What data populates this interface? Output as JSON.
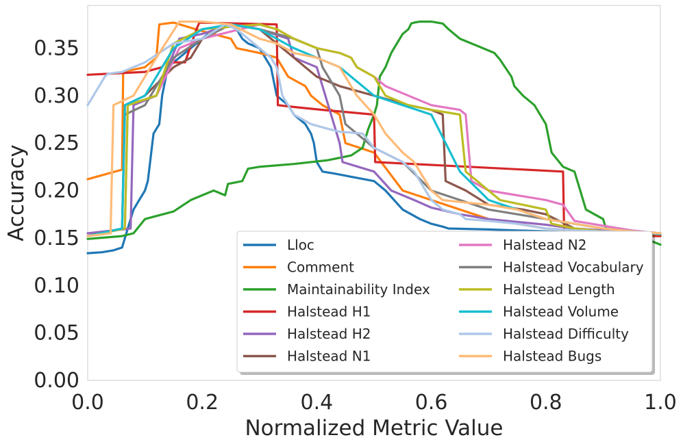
{
  "chart_data": {
    "type": "line",
    "title": "",
    "xlabel": "Normalized Metric Value",
    "ylabel": "Accuracy",
    "xlim": [
      0.0,
      1.0
    ],
    "ylim": [
      0.0,
      0.395
    ],
    "xticks": [
      0.0,
      0.2,
      0.4,
      0.6,
      0.8,
      1.0
    ],
    "xtick_labels": [
      "0.0",
      "0.2",
      "0.4",
      "0.6",
      "0.8",
      "1.0"
    ],
    "yticks": [
      0.0,
      0.05,
      0.1,
      0.15,
      0.2,
      0.25,
      0.3,
      0.35
    ],
    "ytick_labels": [
      "0.00",
      "0.05",
      "0.10",
      "0.15",
      "0.20",
      "0.25",
      "0.30",
      "0.35"
    ],
    "grid": false,
    "legend_position": "lower-right",
    "series": [
      {
        "name": "Lloc",
        "color": "#1f77b4",
        "x": [
          0.0,
          0.025,
          0.045,
          0.06,
          0.07,
          0.08,
          0.09,
          0.1,
          0.105,
          0.115,
          0.125,
          0.13,
          0.14,
          0.16,
          0.18,
          0.2,
          0.22,
          0.25,
          0.26,
          0.27,
          0.28,
          0.3,
          0.32,
          0.33,
          0.35,
          0.36,
          0.38,
          0.39,
          0.395,
          0.4,
          0.41,
          0.43,
          0.5,
          0.52,
          0.55,
          0.58,
          0.6,
          0.62,
          0.63,
          0.7,
          0.75,
          0.8,
          0.85,
          0.9,
          0.95,
          1.0
        ],
        "y": [
          0.134,
          0.135,
          0.137,
          0.14,
          0.16,
          0.18,
          0.19,
          0.2,
          0.21,
          0.26,
          0.27,
          0.3,
          0.33,
          0.34,
          0.35,
          0.36,
          0.37,
          0.375,
          0.37,
          0.36,
          0.355,
          0.35,
          0.33,
          0.3,
          0.29,
          0.28,
          0.27,
          0.26,
          0.25,
          0.23,
          0.22,
          0.218,
          0.21,
          0.2,
          0.18,
          0.17,
          0.165,
          0.162,
          0.16,
          0.159,
          0.158,
          0.157,
          0.156,
          0.155,
          0.154,
          0.153
        ]
      },
      {
        "name": "Comment",
        "color": "#ff7f0e",
        "x": [
          0.0,
          0.06,
          0.062,
          0.1,
          0.12,
          0.125,
          0.15,
          0.2,
          0.25,
          0.26,
          0.3,
          0.33,
          0.35,
          0.38,
          0.39,
          0.41,
          0.44,
          0.45,
          0.5,
          0.55,
          0.6,
          0.65,
          0.7,
          0.75,
          0.8,
          0.85,
          0.9,
          0.95,
          1.0
        ],
        "y": [
          0.212,
          0.222,
          0.325,
          0.33,
          0.34,
          0.375,
          0.377,
          0.368,
          0.36,
          0.35,
          0.345,
          0.34,
          0.32,
          0.31,
          0.3,
          0.29,
          0.28,
          0.25,
          0.24,
          0.2,
          0.19,
          0.18,
          0.17,
          0.165,
          0.16,
          0.158,
          0.156,
          0.155,
          0.154
        ]
      },
      {
        "name": "Maintainability Index",
        "color": "#2ca02c",
        "x": [
          0.0,
          0.02,
          0.04,
          0.06,
          0.08,
          0.1,
          0.15,
          0.18,
          0.22,
          0.24,
          0.245,
          0.27,
          0.28,
          0.3,
          0.36,
          0.42,
          0.46,
          0.48,
          0.49,
          0.5,
          0.505,
          0.51,
          0.52,
          0.53,
          0.54,
          0.55,
          0.56,
          0.565,
          0.57,
          0.58,
          0.6,
          0.62,
          0.63,
          0.65,
          0.69,
          0.71,
          0.72,
          0.74,
          0.745,
          0.76,
          0.78,
          0.8,
          0.81,
          0.83,
          0.85,
          0.86,
          0.87,
          0.9,
          0.905,
          0.95,
          1.0
        ],
        "y": [
          0.149,
          0.15,
          0.151,
          0.152,
          0.155,
          0.17,
          0.178,
          0.19,
          0.2,
          0.195,
          0.207,
          0.21,
          0.223,
          0.225,
          0.228,
          0.232,
          0.237,
          0.245,
          0.265,
          0.28,
          0.29,
          0.32,
          0.33,
          0.345,
          0.355,
          0.365,
          0.37,
          0.376,
          0.377,
          0.378,
          0.378,
          0.376,
          0.37,
          0.36,
          0.35,
          0.345,
          0.338,
          0.32,
          0.31,
          0.3,
          0.29,
          0.27,
          0.24,
          0.225,
          0.22,
          0.2,
          0.18,
          0.17,
          0.16,
          0.155,
          0.143
        ]
      },
      {
        "name": "Halstead H1",
        "color": "#d62728",
        "x": [
          0.0,
          0.1,
          0.13,
          0.135,
          0.17,
          0.19,
          0.195,
          0.33,
          0.332,
          0.36,
          0.41,
          0.5,
          0.502,
          0.83,
          0.832,
          1.0
        ],
        "y": [
          0.322,
          0.325,
          0.33,
          0.335,
          0.335,
          0.37,
          0.377,
          0.375,
          0.29,
          0.288,
          0.285,
          0.28,
          0.23,
          0.22,
          0.153,
          0.152
        ]
      },
      {
        "name": "Halstead H2",
        "color": "#9467bd",
        "x": [
          0.0,
          0.075,
          0.08,
          0.12,
          0.16,
          0.2,
          0.25,
          0.3,
          0.35,
          0.36,
          0.4,
          0.44,
          0.445,
          0.5,
          0.53,
          0.57,
          0.6,
          0.65,
          0.7,
          0.75,
          0.8,
          0.85,
          0.9,
          0.95,
          1.0
        ],
        "y": [
          0.155,
          0.16,
          0.29,
          0.3,
          0.36,
          0.365,
          0.375,
          0.37,
          0.36,
          0.34,
          0.33,
          0.25,
          0.23,
          0.22,
          0.2,
          0.19,
          0.182,
          0.175,
          0.17,
          0.167,
          0.164,
          0.16,
          0.158,
          0.156,
          0.155
        ]
      },
      {
        "name": "Halstead N1",
        "color": "#8c564b",
        "x": [
          0.0,
          0.06,
          0.065,
          0.1,
          0.15,
          0.18,
          0.2,
          0.25,
          0.3,
          0.33,
          0.36,
          0.4,
          0.44,
          0.5,
          0.56,
          0.6,
          0.62,
          0.625,
          0.66,
          0.7,
          0.76,
          0.8,
          0.85,
          0.9,
          0.95,
          1.0
        ],
        "y": [
          0.152,
          0.16,
          0.29,
          0.3,
          0.33,
          0.34,
          0.36,
          0.375,
          0.37,
          0.355,
          0.34,
          0.32,
          0.31,
          0.3,
          0.29,
          0.285,
          0.28,
          0.21,
          0.2,
          0.185,
          0.18,
          0.175,
          0.16,
          0.157,
          0.155,
          0.154
        ]
      },
      {
        "name": "Halstead N2",
        "color": "#e377c2",
        "x": [
          0.0,
          0.065,
          0.07,
          0.12,
          0.16,
          0.2,
          0.3,
          0.33,
          0.36,
          0.4,
          0.44,
          0.46,
          0.47,
          0.5,
          0.52,
          0.56,
          0.6,
          0.65,
          0.66,
          0.67,
          0.7,
          0.75,
          0.8,
          0.83,
          0.85,
          0.9,
          0.95,
          1.0
        ],
        "y": [
          0.152,
          0.16,
          0.29,
          0.3,
          0.35,
          0.36,
          0.375,
          0.37,
          0.36,
          0.35,
          0.345,
          0.34,
          0.33,
          0.32,
          0.31,
          0.3,
          0.29,
          0.285,
          0.28,
          0.21,
          0.2,
          0.195,
          0.19,
          0.185,
          0.168,
          0.163,
          0.158,
          0.155
        ]
      },
      {
        "name": "Halstead Vocabulary",
        "color": "#7f7f7f",
        "x": [
          0.0,
          0.06,
          0.065,
          0.1,
          0.15,
          0.2,
          0.25,
          0.3,
          0.33,
          0.36,
          0.4,
          0.41,
          0.44,
          0.45,
          0.49,
          0.5,
          0.55,
          0.6,
          0.65,
          0.7,
          0.75,
          0.8,
          0.85,
          0.9,
          0.95,
          1.0
        ],
        "y": [
          0.152,
          0.16,
          0.28,
          0.29,
          0.34,
          0.36,
          0.375,
          0.37,
          0.365,
          0.36,
          0.35,
          0.33,
          0.3,
          0.27,
          0.25,
          0.245,
          0.23,
          0.2,
          0.19,
          0.18,
          0.175,
          0.17,
          0.165,
          0.16,
          0.157,
          0.155
        ]
      },
      {
        "name": "Halstead Length",
        "color": "#bcbd22",
        "x": [
          0.0,
          0.065,
          0.07,
          0.12,
          0.15,
          0.2,
          0.3,
          0.33,
          0.36,
          0.4,
          0.44,
          0.46,
          0.47,
          0.5,
          0.52,
          0.56,
          0.6,
          0.65,
          0.66,
          0.7,
          0.72,
          0.8,
          0.81,
          0.85,
          0.9,
          0.95,
          1.0
        ],
        "y": [
          0.152,
          0.16,
          0.29,
          0.3,
          0.355,
          0.37,
          0.375,
          0.37,
          0.36,
          0.35,
          0.345,
          0.34,
          0.33,
          0.32,
          0.3,
          0.29,
          0.285,
          0.28,
          0.22,
          0.2,
          0.19,
          0.18,
          0.165,
          0.16,
          0.157,
          0.155,
          0.154
        ]
      },
      {
        "name": "Halstead Volume",
        "color": "#17becf",
        "x": [
          0.0,
          0.06,
          0.065,
          0.1,
          0.15,
          0.2,
          0.25,
          0.3,
          0.33,
          0.36,
          0.4,
          0.44,
          0.46,
          0.5,
          0.55,
          0.6,
          0.65,
          0.7,
          0.8,
          0.9,
          1.0
        ],
        "y": [
          0.152,
          0.16,
          0.29,
          0.3,
          0.35,
          0.37,
          0.375,
          0.37,
          0.36,
          0.35,
          0.34,
          0.33,
          0.32,
          0.3,
          0.29,
          0.28,
          0.22,
          0.19,
          0.17,
          0.16,
          0.154
        ]
      },
      {
        "name": "Halstead Difficulty",
        "color": "#aec7e8",
        "x": [
          0.0,
          0.01,
          0.02,
          0.03,
          0.035,
          0.06,
          0.1,
          0.15,
          0.2,
          0.24,
          0.26,
          0.3,
          0.32,
          0.33,
          0.34,
          0.36,
          0.39,
          0.42,
          0.44,
          0.48,
          0.5,
          0.55,
          0.57,
          0.6,
          0.62,
          0.65,
          0.66,
          0.7,
          0.75,
          0.8,
          0.85,
          0.9,
          0.95,
          1.0
        ],
        "y": [
          0.29,
          0.3,
          0.31,
          0.32,
          0.323,
          0.325,
          0.335,
          0.355,
          0.36,
          0.375,
          0.37,
          0.35,
          0.34,
          0.33,
          0.3,
          0.28,
          0.27,
          0.265,
          0.262,
          0.26,
          0.245,
          0.23,
          0.22,
          0.19,
          0.18,
          0.175,
          0.17,
          0.168,
          0.165,
          0.16,
          0.158,
          0.157,
          0.156,
          0.155
        ]
      },
      {
        "name": "Halstead Bugs",
        "color": "#ffbb78",
        "x": [
          0.0,
          0.04,
          0.045,
          0.08,
          0.1,
          0.12,
          0.16,
          0.2,
          0.25,
          0.3,
          0.33,
          0.36,
          0.4,
          0.44,
          0.47,
          0.5,
          0.52,
          0.55,
          0.57,
          0.6,
          0.62,
          0.65,
          0.7,
          0.75,
          0.8,
          0.85,
          0.9,
          0.95,
          1.0
        ],
        "y": [
          0.152,
          0.155,
          0.29,
          0.3,
          0.32,
          0.34,
          0.378,
          0.378,
          0.375,
          0.36,
          0.355,
          0.345,
          0.34,
          0.33,
          0.3,
          0.28,
          0.26,
          0.24,
          0.23,
          0.2,
          0.19,
          0.188,
          0.185,
          0.18,
          0.17,
          0.165,
          0.16,
          0.157,
          0.155
        ]
      }
    ]
  }
}
